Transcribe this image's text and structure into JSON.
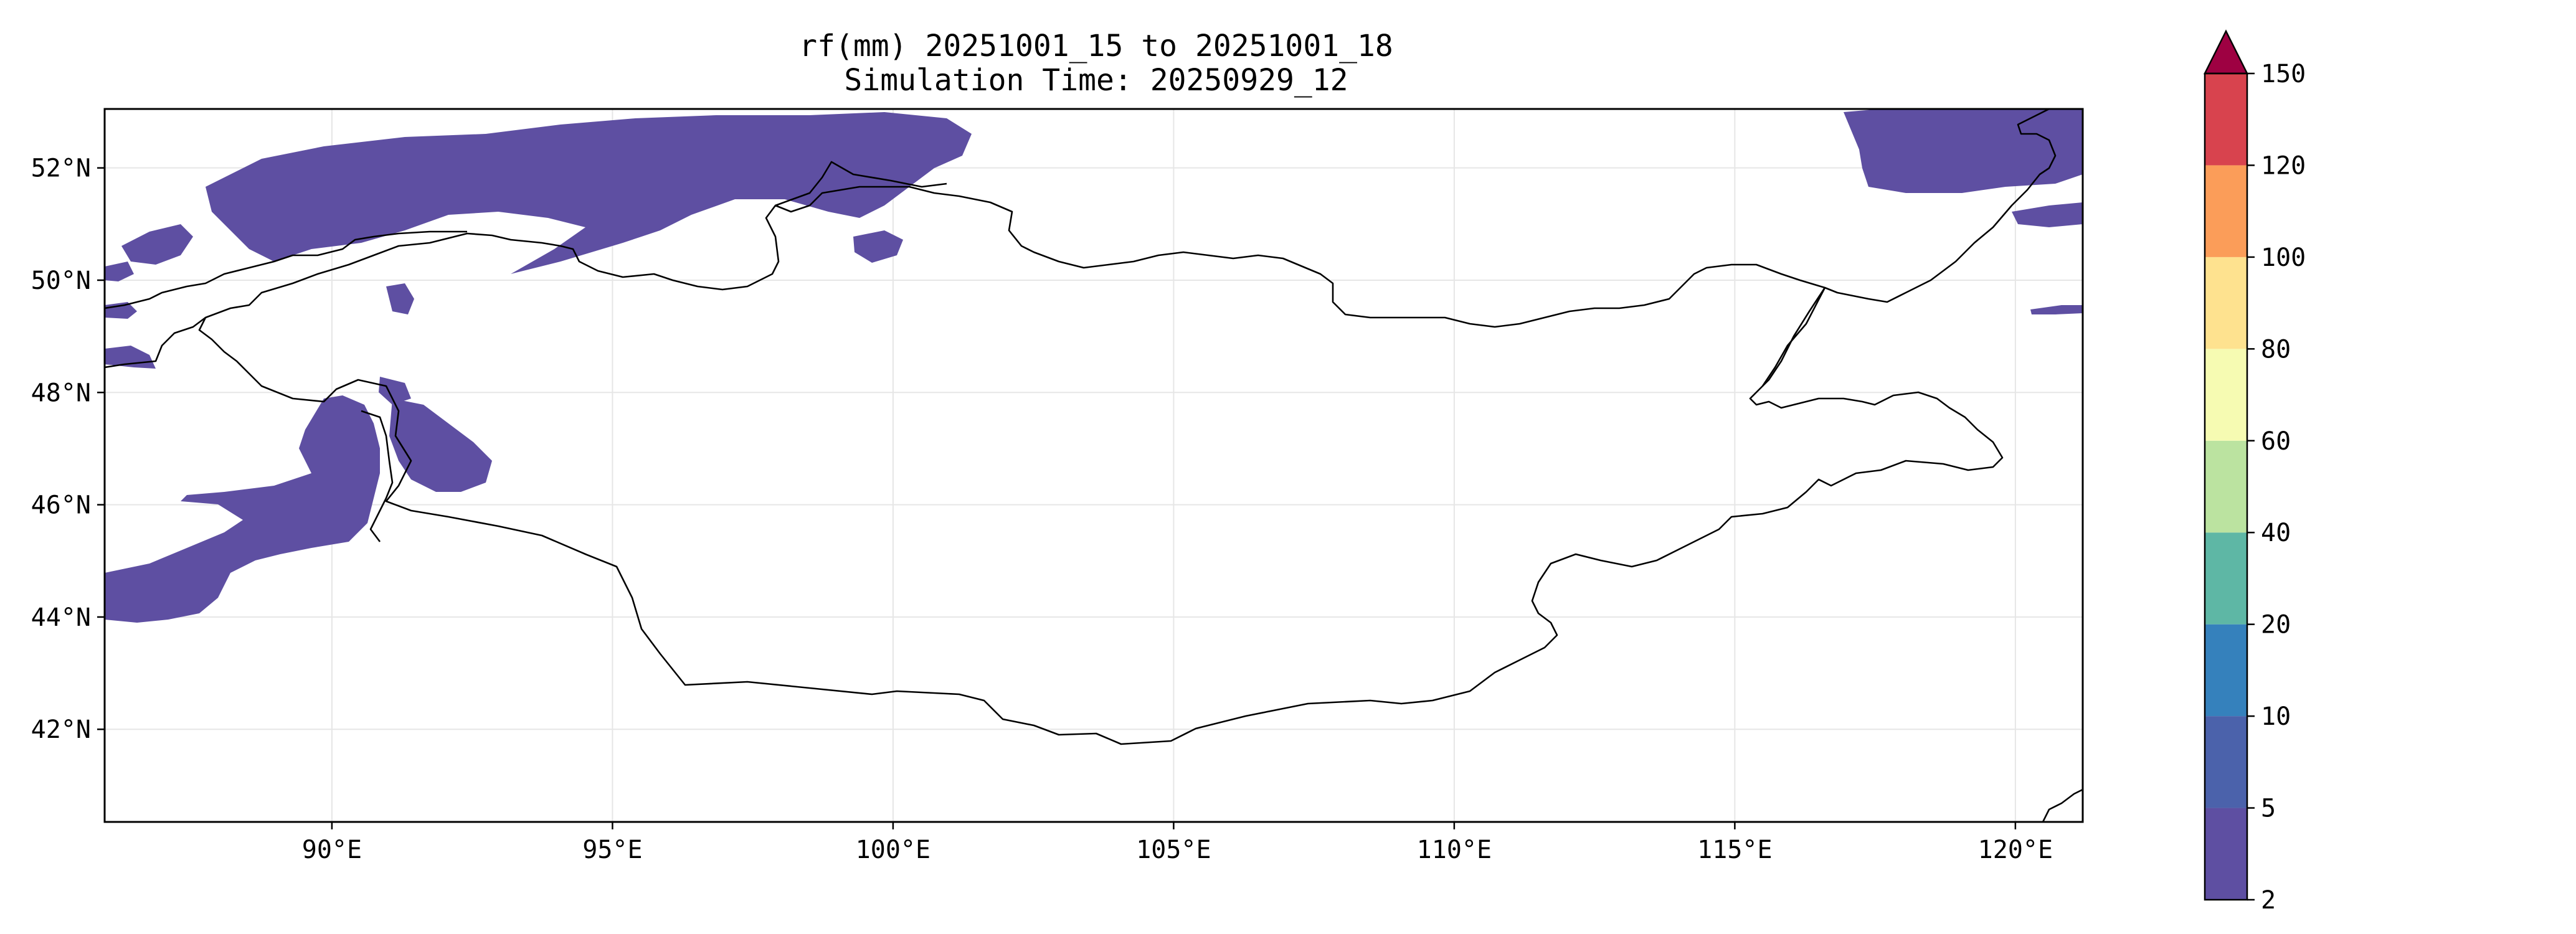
{
  "map": {
    "title_line1": "rf(mm) 20251001_15 to 20251001_18",
    "title_line2": "Simulation Time: 20250929_12",
    "lon_ticks": [
      {
        "lon": 90,
        "label": "90°E"
      },
      {
        "lon": 95,
        "label": "95°E"
      },
      {
        "lon": 100,
        "label": "100°E"
      },
      {
        "lon": 105,
        "label": "105°E"
      },
      {
        "lon": 110,
        "label": "110°E"
      },
      {
        "lon": 115,
        "label": "115°E"
      },
      {
        "lon": 120,
        "label": "120°E"
      }
    ],
    "lat_ticks": [
      {
        "lat": 52,
        "label": "52°N"
      },
      {
        "lat": 50,
        "label": "50°N"
      },
      {
        "lat": 48,
        "label": "48°N"
      },
      {
        "lat": 46,
        "label": "46°N"
      },
      {
        "lat": 44,
        "label": "44°N"
      },
      {
        "lat": 42,
        "label": "42°N"
      }
    ],
    "lon_range": [
      85.95,
      121.2
    ],
    "lat_range": [
      40.35,
      53.05
    ],
    "gridlines": true,
    "projection": "PlateCarree"
  },
  "colorbar": {
    "levels": [
      "2",
      "5",
      "10",
      "20",
      "40",
      "60",
      "80",
      "100",
      "120",
      "150"
    ],
    "colors": [
      "#5e4fa2",
      "#4b62ab",
      "#3581bc",
      "#5eb7a5",
      "#bbe3a0",
      "#f6fbb2",
      "#fee28f",
      "#fb9d59",
      "#d8434e",
      "#9e0142"
    ],
    "extend": "max"
  },
  "rain_color": "#5e4fa2",
  "border_color": "#000000"
}
